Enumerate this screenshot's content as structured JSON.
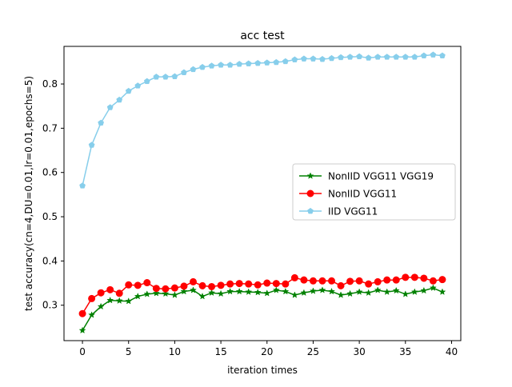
{
  "chart_data": {
    "type": "line",
    "title": "acc test",
    "xlabel": "iteration times",
    "ylabel": "test accuracy(cn=4,DU=0.01,lr=0.01,epochs=5)",
    "xlim": [
      -2,
      41
    ],
    "ylim": [
      0.22,
      0.885
    ],
    "xticks": [
      0,
      5,
      10,
      15,
      20,
      25,
      30,
      35,
      40
    ],
    "yticks": [
      0.3,
      0.4,
      0.5,
      0.6,
      0.7,
      0.8
    ],
    "grid": false,
    "legend_position": "center-right",
    "x": [
      0,
      1,
      2,
      3,
      4,
      5,
      6,
      7,
      8,
      9,
      10,
      11,
      12,
      13,
      14,
      15,
      16,
      17,
      18,
      19,
      20,
      21,
      22,
      23,
      24,
      25,
      26,
      27,
      28,
      29,
      30,
      31,
      32,
      33,
      34,
      35,
      36,
      37,
      38,
      39
    ],
    "series": [
      {
        "name": "NonIID VGG11 VGG19",
        "color": "#008000",
        "marker": "star",
        "values": [
          0.243,
          0.278,
          0.297,
          0.311,
          0.31,
          0.309,
          0.32,
          0.325,
          0.327,
          0.326,
          0.323,
          0.331,
          0.334,
          0.32,
          0.328,
          0.326,
          0.331,
          0.331,
          0.33,
          0.329,
          0.327,
          0.334,
          0.331,
          0.323,
          0.328,
          0.332,
          0.334,
          0.331,
          0.323,
          0.326,
          0.33,
          0.328,
          0.334,
          0.33,
          0.333,
          0.325,
          0.33,
          0.333,
          0.339,
          0.33
        ]
      },
      {
        "name": "NonIID VGG11",
        "color": "#ff0000",
        "marker": "circle",
        "values": [
          0.281,
          0.315,
          0.328,
          0.335,
          0.327,
          0.346,
          0.345,
          0.351,
          0.338,
          0.337,
          0.339,
          0.343,
          0.353,
          0.344,
          0.342,
          0.345,
          0.348,
          0.349,
          0.348,
          0.346,
          0.35,
          0.349,
          0.348,
          0.362,
          0.357,
          0.355,
          0.355,
          0.355,
          0.344,
          0.354,
          0.355,
          0.348,
          0.353,
          0.357,
          0.357,
          0.363,
          0.363,
          0.361,
          0.355,
          0.358
        ]
      },
      {
        "name": "IID VGG11",
        "color": "#87ceeb",
        "marker": "pentagon",
        "values": [
          0.57,
          0.662,
          0.712,
          0.747,
          0.764,
          0.784,
          0.796,
          0.806,
          0.816,
          0.816,
          0.817,
          0.826,
          0.833,
          0.838,
          0.841,
          0.843,
          0.843,
          0.845,
          0.846,
          0.847,
          0.848,
          0.849,
          0.851,
          0.855,
          0.857,
          0.857,
          0.856,
          0.858,
          0.86,
          0.861,
          0.862,
          0.859,
          0.861,
          0.861,
          0.861,
          0.861,
          0.861,
          0.864,
          0.866,
          0.864
        ]
      }
    ]
  }
}
